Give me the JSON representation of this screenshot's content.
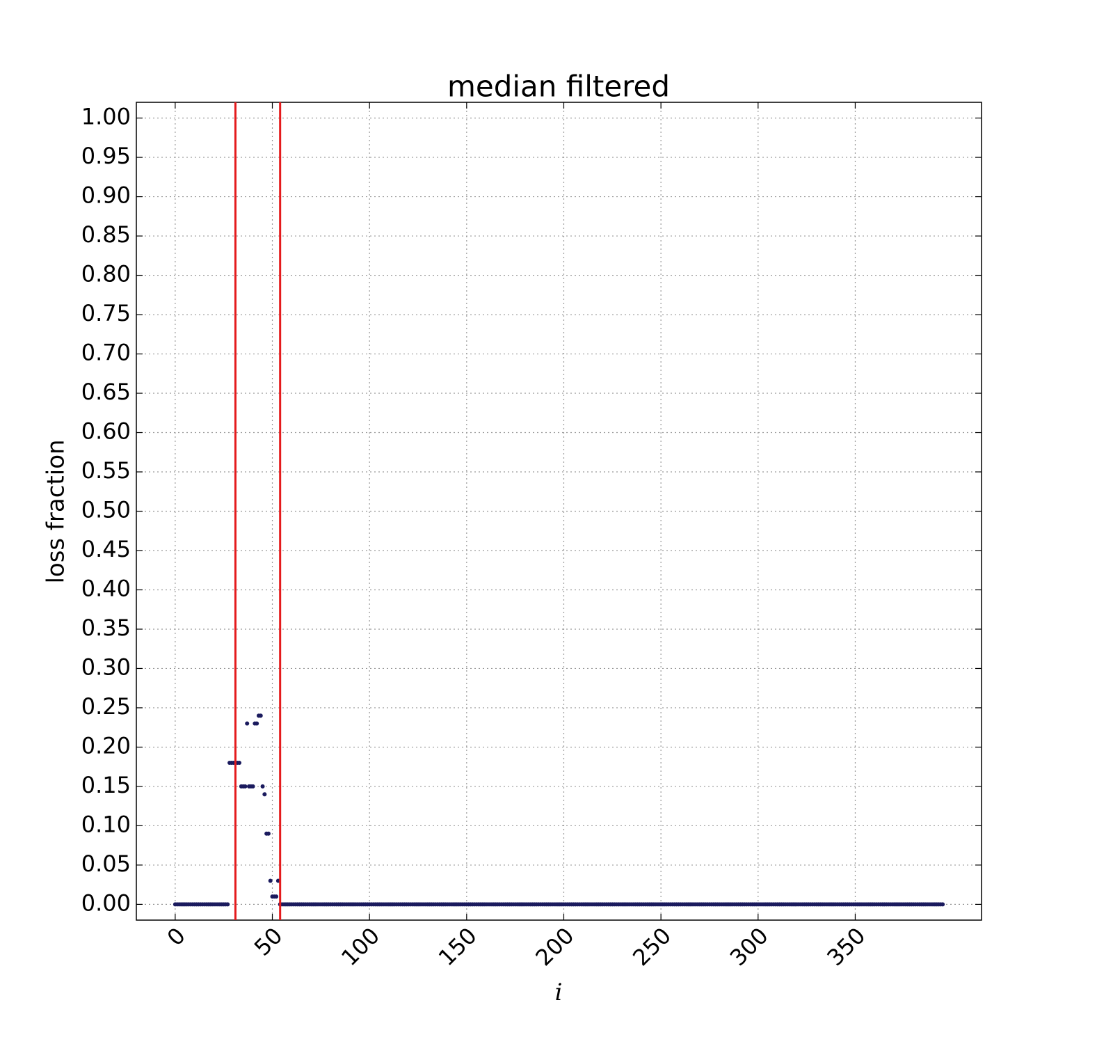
{
  "chart_data": {
    "type": "scatter",
    "title": "median filtered",
    "x_label": "i",
    "y_label": "loss fraction",
    "color": "#1b1b5e",
    "grid": true,
    "xlim": [
      -20,
      415
    ],
    "xticks": [
      0,
      50,
      100,
      150,
      200,
      250,
      300,
      350
    ],
    "ylim": [
      -0.02,
      1.02
    ],
    "yticks": [
      {
        "value": 0,
        "label": "0.00"
      },
      {
        "value": 0.05,
        "label": "0.05"
      },
      {
        "value": 0.1,
        "label": "0.10"
      },
      {
        "value": 0.15,
        "label": "0.15"
      },
      {
        "value": 0.2,
        "label": "0.20"
      },
      {
        "value": 0.25,
        "label": "0.25"
      },
      {
        "value": 0.3,
        "label": "0.30"
      },
      {
        "value": 0.35,
        "label": "0.35"
      },
      {
        "value": 0.4,
        "label": "0.40"
      },
      {
        "value": 0.45,
        "label": "0.45"
      },
      {
        "value": 0.5,
        "label": "0.50"
      },
      {
        "value": 0.55,
        "label": "0.55"
      },
      {
        "value": 0.6,
        "label": "0.60"
      },
      {
        "value": 0.65,
        "label": "0.65"
      },
      {
        "value": 0.7,
        "label": "0.70"
      },
      {
        "value": 0.75,
        "label": "0.75"
      },
      {
        "value": 0.8,
        "label": "0.80"
      },
      {
        "value": 0.85,
        "label": "0.85"
      },
      {
        "value": 0.9,
        "label": "0.90"
      },
      {
        "value": 0.95,
        "label": "0.95"
      },
      {
        "value": 1,
        "label": "1.00"
      }
    ],
    "vlines": [
      31,
      54
    ],
    "vline_color": "#e41a1c",
    "values": [
      0,
      0,
      0,
      0,
      0,
      0,
      0,
      0,
      0,
      0,
      0,
      0,
      0,
      0,
      0,
      0,
      0,
      0,
      0,
      0,
      0,
      0,
      0,
      0,
      0,
      0,
      0,
      0,
      0.18,
      0.18,
      0.18,
      0.18,
      0.18,
      0.18,
      0.15,
      0.15,
      0.15,
      0.23,
      0.15,
      0.15,
      0.15,
      0.23,
      0.23,
      0.24,
      0.24,
      0.15,
      0.14,
      0.09,
      0.09,
      0.03,
      0.01,
      0.01,
      0.01,
      0.03,
      0,
      0,
      0,
      0,
      0,
      0,
      0,
      0,
      0,
      0,
      0,
      0,
      0,
      0,
      0,
      0,
      0,
      0,
      0,
      0,
      0,
      0,
      0,
      0,
      0,
      0,
      0,
      0,
      0,
      0,
      0,
      0,
      0,
      0,
      0,
      0,
      0,
      0,
      0,
      0,
      0,
      0,
      0,
      0,
      0,
      0,
      0,
      0,
      0,
      0,
      0,
      0,
      0,
      0,
      0,
      0,
      0,
      0,
      0,
      0,
      0,
      0,
      0,
      0,
      0,
      0,
      0,
      0,
      0,
      0,
      0,
      0,
      0,
      0,
      0,
      0,
      0,
      0,
      0,
      0,
      0,
      0,
      0,
      0,
      0,
      0,
      0,
      0,
      0,
      0,
      0,
      0,
      0,
      0,
      0,
      0,
      0,
      0,
      0,
      0,
      0,
      0,
      0,
      0,
      0,
      0,
      0,
      0,
      0,
      0,
      0,
      0,
      0,
      0,
      0,
      0,
      0,
      0,
      0,
      0,
      0,
      0,
      0,
      0,
      0,
      0,
      0,
      0,
      0,
      0,
      0,
      0,
      0,
      0,
      0,
      0,
      0,
      0,
      0,
      0,
      0,
      0,
      0,
      0,
      0,
      0,
      0,
      0,
      0,
      0,
      0,
      0,
      0,
      0,
      0,
      0,
      0,
      0,
      0,
      0,
      0,
      0,
      0,
      0,
      0,
      0,
      0,
      0,
      0,
      0,
      0,
      0,
      0,
      0,
      0,
      0,
      0,
      0,
      0,
      0,
      0,
      0,
      0,
      0,
      0,
      0,
      0,
      0,
      0,
      0,
      0,
      0,
      0,
      0,
      0,
      0,
      0,
      0,
      0,
      0,
      0,
      0,
      0,
      0,
      0,
      0,
      0,
      0,
      0,
      0,
      0,
      0,
      0,
      0,
      0,
      0,
      0,
      0,
      0,
      0,
      0,
      0,
      0,
      0,
      0,
      0,
      0,
      0,
      0,
      0,
      0,
      0,
      0,
      0,
      0,
      0,
      0,
      0,
      0,
      0,
      0,
      0,
      0,
      0,
      0,
      0,
      0,
      0,
      0,
      0,
      0,
      0,
      0,
      0,
      0,
      0,
      0,
      0,
      0,
      0,
      0,
      0,
      0,
      0,
      0,
      0,
      0,
      0,
      0,
      0,
      0,
      0,
      0,
      0,
      0,
      0,
      0,
      0,
      0,
      0,
      0,
      0,
      0,
      0,
      0,
      0,
      0,
      0,
      0,
      0,
      0,
      0,
      0,
      0,
      0,
      0,
      0,
      0,
      0,
      0,
      0,
      0,
      0,
      0,
      0,
      0,
      0,
      0,
      0,
      0,
      0,
      0,
      0,
      0,
      0,
      0,
      0,
      0,
      0,
      0,
      0,
      0,
      0,
      0,
      0,
      0,
      0,
      0,
      0,
      0,
      0,
      0,
      0,
      0,
      0,
      0,
      0,
      0,
      0,
      0,
      0,
      0
    ]
  }
}
